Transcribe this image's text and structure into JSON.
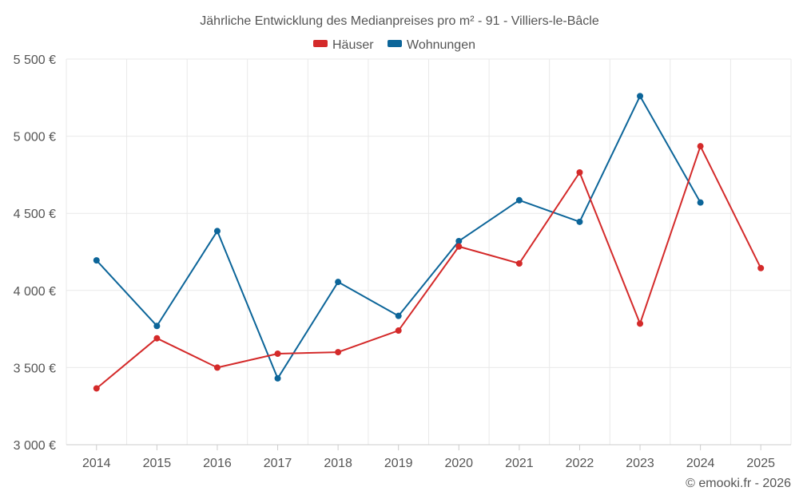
{
  "chart_data": {
    "type": "line",
    "title": "Jährliche Entwicklung des Medianpreises pro m² - 91 - Villiers-le-Bâcle",
    "categories": [
      "2014",
      "2015",
      "2016",
      "2017",
      "2018",
      "2019",
      "2020",
      "2021",
      "2022",
      "2023",
      "2024",
      "2025"
    ],
    "ylim": [
      3000,
      5500
    ],
    "yticks": [
      3000,
      3500,
      4000,
      4500,
      5000,
      5500
    ],
    "ytick_labels": [
      "3 000 €",
      "3 500 €",
      "4 000 €",
      "4 500 €",
      "5 000 €",
      "5 500 €"
    ],
    "series": [
      {
        "name": "Häuser",
        "color": "#d42a2a",
        "values": [
          3365,
          3690,
          3500,
          3590,
          3600,
          3740,
          4285,
          4175,
          4765,
          3785,
          4935,
          4145
        ]
      },
      {
        "name": "Wohnungen",
        "color": "#0c6599",
        "values": [
          4195,
          3770,
          4385,
          3430,
          4055,
          3835,
          4320,
          4585,
          4445,
          5260,
          4570,
          null
        ]
      }
    ],
    "legend_position": "top-center",
    "grid": true
  },
  "credit": "© emooki.fr - 2026"
}
